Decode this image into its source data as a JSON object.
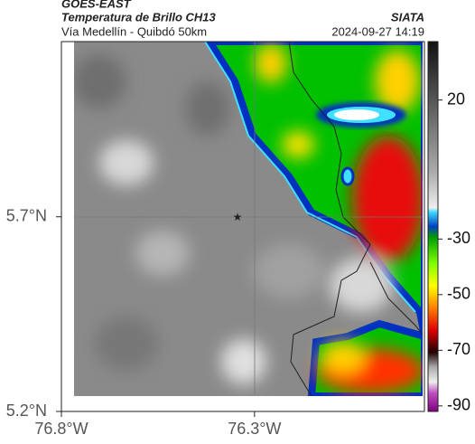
{
  "header": {
    "source": "GOES-EAST",
    "product": "Temperatura de Brillo CH13",
    "org": "SIATA",
    "region": "Vía Medellín - Quibdó 50km",
    "timestamp": "2024-09-27 14:19"
  },
  "map": {
    "lon_range": [
      -76.8,
      -75.86
    ],
    "lat_range": [
      5.2,
      6.15
    ],
    "lon_ticks": [
      {
        "value": -76.8,
        "label": "76.8°W"
      },
      {
        "value": -76.3,
        "label": "76.3°W"
      }
    ],
    "lat_ticks": [
      {
        "value": 5.7,
        "label": "5.7°N"
      },
      {
        "value": 5.2,
        "label": "5.2°N"
      }
    ]
  },
  "colorbar": {
    "range": [
      -92,
      41
    ],
    "ticks": [
      20,
      -30,
      -50,
      -70,
      -90
    ]
  }
}
